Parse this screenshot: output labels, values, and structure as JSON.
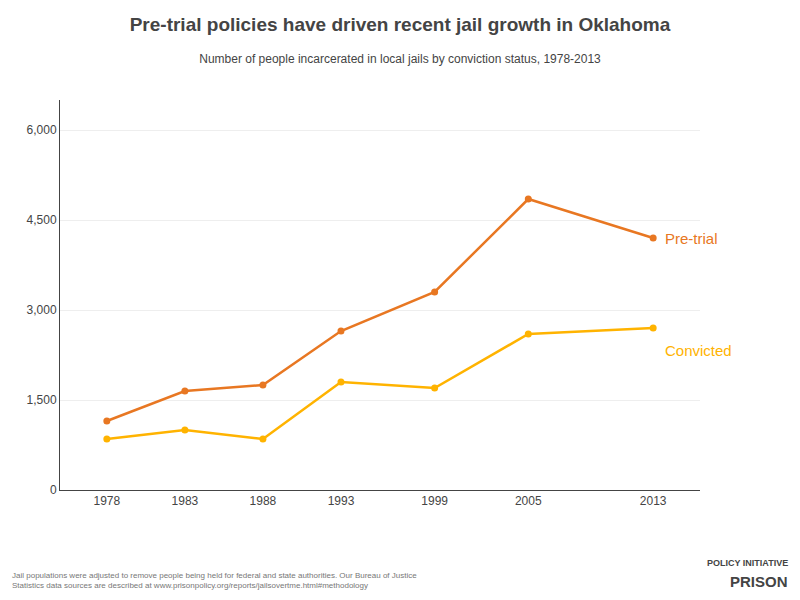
{
  "chart_data": {
    "type": "line",
    "title": "Pre-trial policies have driven recent jail growth in Oklahoma",
    "subtitle": "Number of people incarcerated in local jails by conviction status, 1978-2013",
    "x": [
      1978,
      1983,
      1988,
      1993,
      1999,
      2005,
      2013
    ],
    "series": [
      {
        "name": "Pre-trial",
        "color": "#E87722",
        "values": [
          1150,
          1650,
          1750,
          2650,
          3300,
          4850,
          4200
        ]
      },
      {
        "name": "Convicted",
        "color": "#FFB300",
        "values": [
          850,
          1000,
          850,
          1800,
          1700,
          2600,
          2700
        ]
      }
    ],
    "xlim": [
      1975,
      2016
    ],
    "xticks": [
      1978,
      1983,
      1988,
      1993,
      1999,
      2005,
      2013
    ],
    "ylim": [
      0,
      6500
    ],
    "yticks": [
      0,
      {
        "value": 1500,
        "label": "1,500"
      },
      {
        "value": 3000,
        "label": "3,000"
      },
      {
        "value": 4500,
        "label": "4,500"
      },
      {
        "value": 6000,
        "label": "6,000"
      }
    ],
    "grid": "y",
    "marker": "circle",
    "annotations": [
      "Jail populations were adjusted to remove people being held for federal and state authorities. Our Bureau of Justice\nStatistics data sources are described at www.prisonpolicy.org/reports/jailsovertme.html#methodology",
      "PRISON",
      "POLICY INITIATIVE"
    ]
  }
}
